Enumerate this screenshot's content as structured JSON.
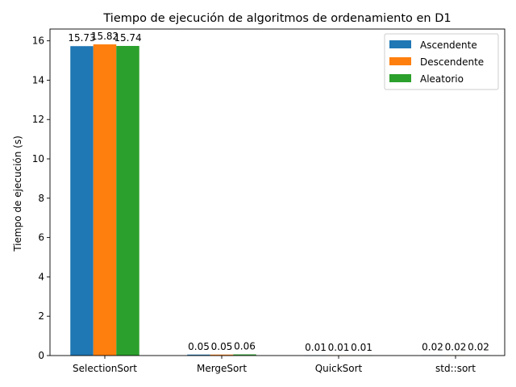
{
  "chart_data": {
    "type": "bar",
    "title": "Tiempo de ejecución de algoritmos de ordenamiento en D1",
    "xlabel": "",
    "ylabel": "Tiempo de ejecución (s)",
    "categories": [
      "SelectionSort",
      "MergeSort",
      "QuickSort",
      "std::sort"
    ],
    "series": [
      {
        "name": "Ascendente",
        "color": "#1f77b4",
        "values": [
          15.73,
          0.05,
          0.01,
          0.02
        ],
        "labels": [
          "15.73",
          "0.05",
          "0.01",
          "0.02"
        ]
      },
      {
        "name": "Descendente",
        "color": "#ff7f0e",
        "values": [
          15.82,
          0.05,
          0.01,
          0.02
        ],
        "labels": [
          "15.82",
          "0.05",
          "0.01",
          "0.02"
        ]
      },
      {
        "name": "Aleatorio",
        "color": "#2ca02c",
        "values": [
          15.74,
          0.06,
          0.01,
          0.02
        ],
        "labels": [
          "15.74",
          "0.06",
          "0.01",
          "0.02"
        ]
      }
    ],
    "yticks": [
      0,
      2,
      4,
      6,
      8,
      10,
      12,
      14,
      16
    ],
    "ylim": [
      0,
      16.6
    ],
    "grid": false,
    "legend_position": "top-right"
  }
}
